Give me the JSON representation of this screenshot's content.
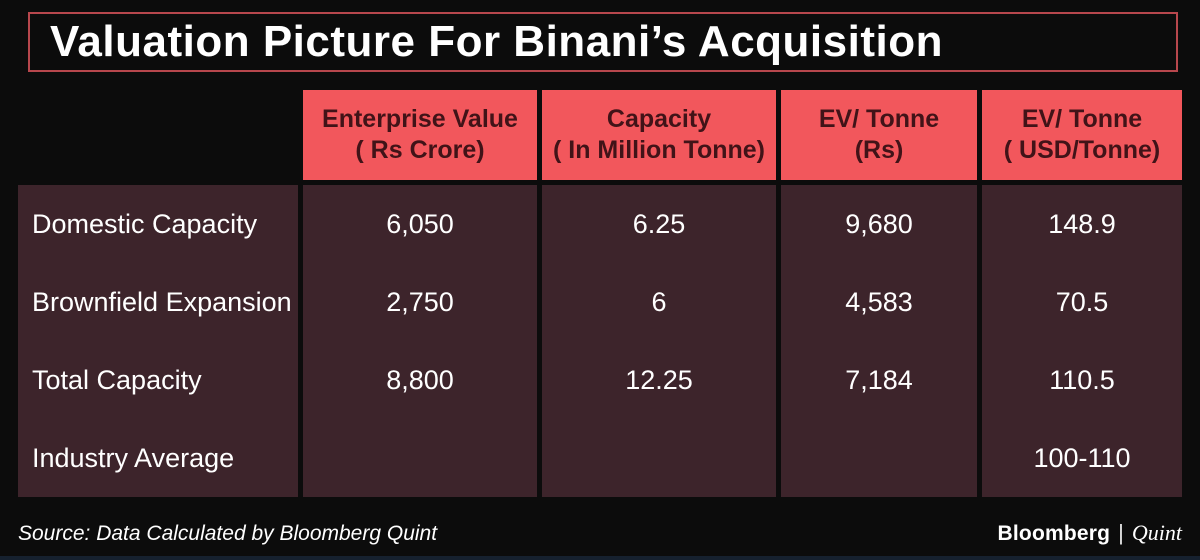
{
  "title": "Valuation Picture For Binani’s Acquisition",
  "colors": {
    "background": "#0c0c0c",
    "title_border": "#b8474d",
    "header_bg": "#f2575c",
    "header_text": "#411318",
    "body_bg": "#3d242b",
    "body_text": "#ffffff",
    "footer_bar": "#16212f"
  },
  "chart_data": {
    "type": "table",
    "title": "Valuation Picture For Binani’s Acquisition",
    "columns": [
      "Enterprise Value ( Rs Crore)",
      "Capacity ( In Million Tonne)",
      "EV/ Tonne (Rs)",
      "EV/ Tonne ( USD/Tonne)"
    ],
    "headers_display": [
      "Enterprise Value\n( Rs Crore)",
      "Capacity\n( In Million Tonne)",
      "EV/ Tonne\n(Rs)",
      "EV/ Tonne\n( USD/Tonne)"
    ],
    "rows": [
      {
        "label": "Domestic Capacity",
        "values": [
          "6,050",
          "6.25",
          "9,680",
          "148.9"
        ]
      },
      {
        "label": "Brownfield Expansion",
        "values": [
          "2,750",
          "6",
          "4,583",
          "70.5"
        ]
      },
      {
        "label": "Total Capacity",
        "values": [
          "8,800",
          "12.25",
          "7,184",
          "110.5"
        ]
      },
      {
        "label": "Industry Average",
        "values": [
          "",
          "",
          "",
          "100-110"
        ]
      }
    ],
    "source": "Source: Data Calculated by Bloomberg Quint"
  },
  "footer": {
    "source": "Source: Data Calculated by Bloomberg Quint",
    "brand_primary": "Bloomberg",
    "brand_divider": "|",
    "brand_secondary": "Quint"
  }
}
